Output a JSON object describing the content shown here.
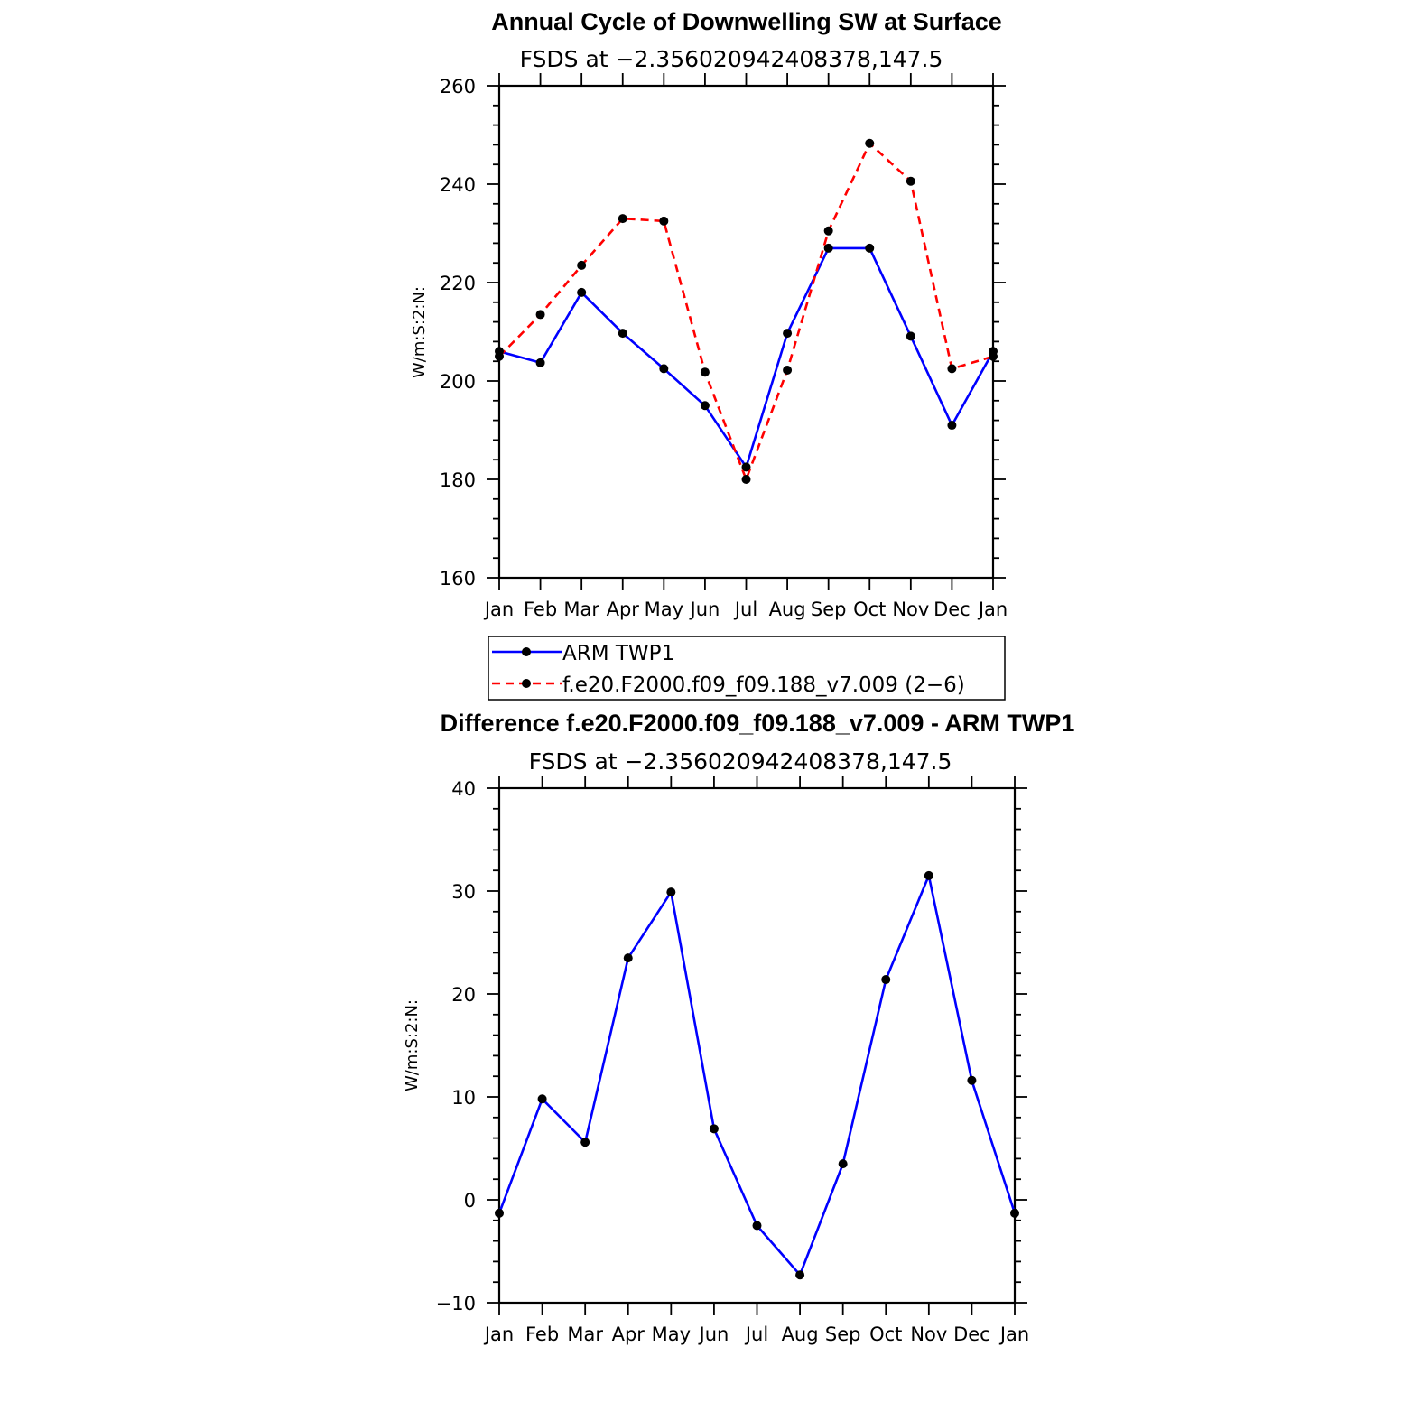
{
  "chart_data": [
    {
      "type": "line",
      "title": "Annual Cycle of Downwelling SW at Surface",
      "subtitle": "FSDS at −2.356020942408378,147.5",
      "ylabel": "W/m:S:2:N:",
      "xlabel": "",
      "categories": [
        "Jan",
        "Feb",
        "Mar",
        "Apr",
        "May",
        "Jun",
        "Jul",
        "Aug",
        "Sep",
        "Oct",
        "Nov",
        "Dec",
        "Jan"
      ],
      "ylim": [
        160,
        260
      ],
      "yticks": [
        "160",
        "180",
        "200",
        "220",
        "240",
        "260"
      ],
      "series": [
        {
          "name": "ARM TWP1",
          "color": "#0000ff",
          "dash": "solid",
          "values": [
            206.0,
            203.7,
            218.0,
            209.7,
            202.5,
            195.0,
            182.5,
            209.7,
            227.0,
            227.0,
            209.1,
            191.0,
            206.0
          ]
        },
        {
          "name": "f.e20.F2000.f09_f09.188_v7.009 (2−6)",
          "color": "#ff0000",
          "dash": "dashed",
          "values": [
            205.0,
            213.5,
            223.5,
            233.0,
            232.5,
            201.8,
            180.0,
            202.2,
            230.5,
            248.3,
            240.6,
            202.5,
            205.0
          ]
        }
      ],
      "legend": "below"
    },
    {
      "type": "line",
      "title": "Difference f.e20.F2000.f09_f09.188_v7.009 - ARM TWP1",
      "subtitle": "FSDS at −2.356020942408378,147.5",
      "ylabel": "W/m:S:2:N:",
      "xlabel": "",
      "categories": [
        "Jan",
        "Feb",
        "Mar",
        "Apr",
        "May",
        "Jun",
        "Jul",
        "Aug",
        "Sep",
        "Oct",
        "Nov",
        "Dec",
        "Jan"
      ],
      "ylim": [
        -10,
        40
      ],
      "yticks": [
        "−10",
        "0",
        "10",
        "20",
        "30",
        "40"
      ],
      "series": [
        {
          "color": "#0000ff",
          "dash": "solid",
          "values": [
            -1.3,
            9.8,
            5.6,
            23.5,
            29.9,
            6.9,
            -2.5,
            -7.3,
            3.5,
            21.4,
            31.5,
            11.6,
            -1.3
          ]
        }
      ]
    }
  ]
}
